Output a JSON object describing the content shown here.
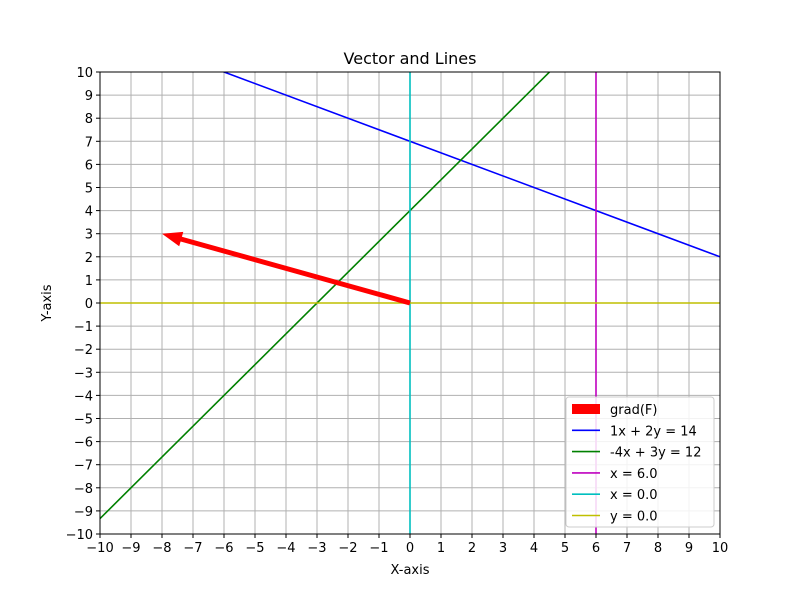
{
  "chart_data": {
    "type": "line",
    "title": "Vector and Lines",
    "xlabel": "X-axis",
    "ylabel": "Y-axis",
    "xlim": [
      -10,
      10
    ],
    "ylim": [
      -10,
      10
    ],
    "xticks": [
      -10,
      -9,
      -8,
      -7,
      -6,
      -5,
      -4,
      -3,
      -2,
      -1,
      0,
      1,
      2,
      3,
      4,
      5,
      6,
      7,
      8,
      9,
      10
    ],
    "yticks": [
      -10,
      -9,
      -8,
      -7,
      -6,
      -5,
      -4,
      -3,
      -2,
      -1,
      0,
      1,
      2,
      3,
      4,
      5,
      6,
      7,
      8,
      9,
      10
    ],
    "grid": true,
    "legend_position": "bottom-right",
    "vector": {
      "name": "grad(F)",
      "start": [
        0,
        0
      ],
      "end": [
        -8,
        3
      ],
      "color": "#ff0000"
    },
    "series": [
      {
        "name": "1x + 2y = 14",
        "color": "#0000ff",
        "x": [
          -10,
          10
        ],
        "y": [
          12,
          2
        ]
      },
      {
        "name": "-4x + 3y = 12",
        "color": "#008000",
        "x": [
          -10,
          10
        ],
        "y": [
          -9.333,
          17.333
        ]
      },
      {
        "name": "x = 6.0",
        "color": "#bf00bf",
        "x": [
          6,
          6
        ],
        "y": [
          -10,
          10
        ]
      },
      {
        "name": "x = 0.0",
        "color": "#00bfbf",
        "x": [
          0,
          0
        ],
        "y": [
          -10,
          10
        ]
      },
      {
        "name": "y = 0.0",
        "color": "#bfbf00",
        "x": [
          -10,
          10
        ],
        "y": [
          0,
          0
        ]
      }
    ]
  }
}
